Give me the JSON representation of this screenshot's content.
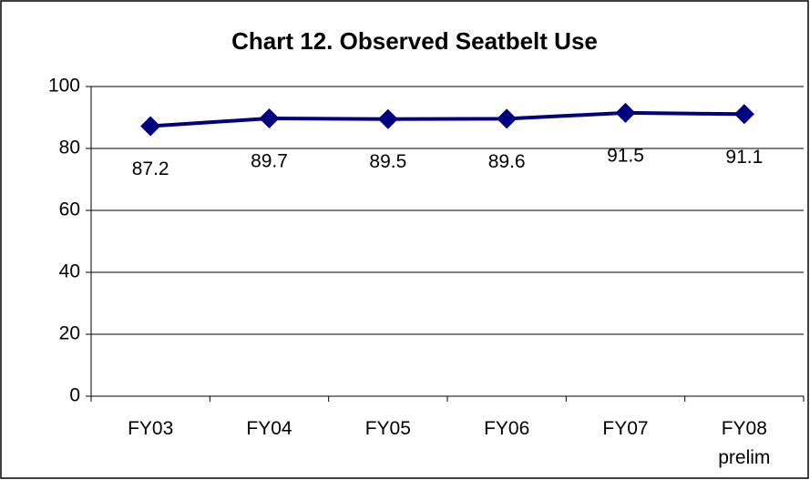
{
  "chart_data": {
    "type": "line",
    "title": "Chart 12. Observed Seatbelt Use",
    "categories": [
      "FY03",
      "FY04",
      "FY05",
      "FY06",
      "FY07",
      "FY08\nprelim"
    ],
    "series": [
      {
        "name": "Observed Seatbelt Use",
        "color": "#000080",
        "values": [
          87.2,
          89.7,
          89.5,
          89.6,
          91.5,
          91.1
        ]
      }
    ],
    "ylim": [
      0,
      100
    ],
    "yticks": [
      0,
      20,
      40,
      60,
      80,
      100
    ],
    "grid": true
  }
}
